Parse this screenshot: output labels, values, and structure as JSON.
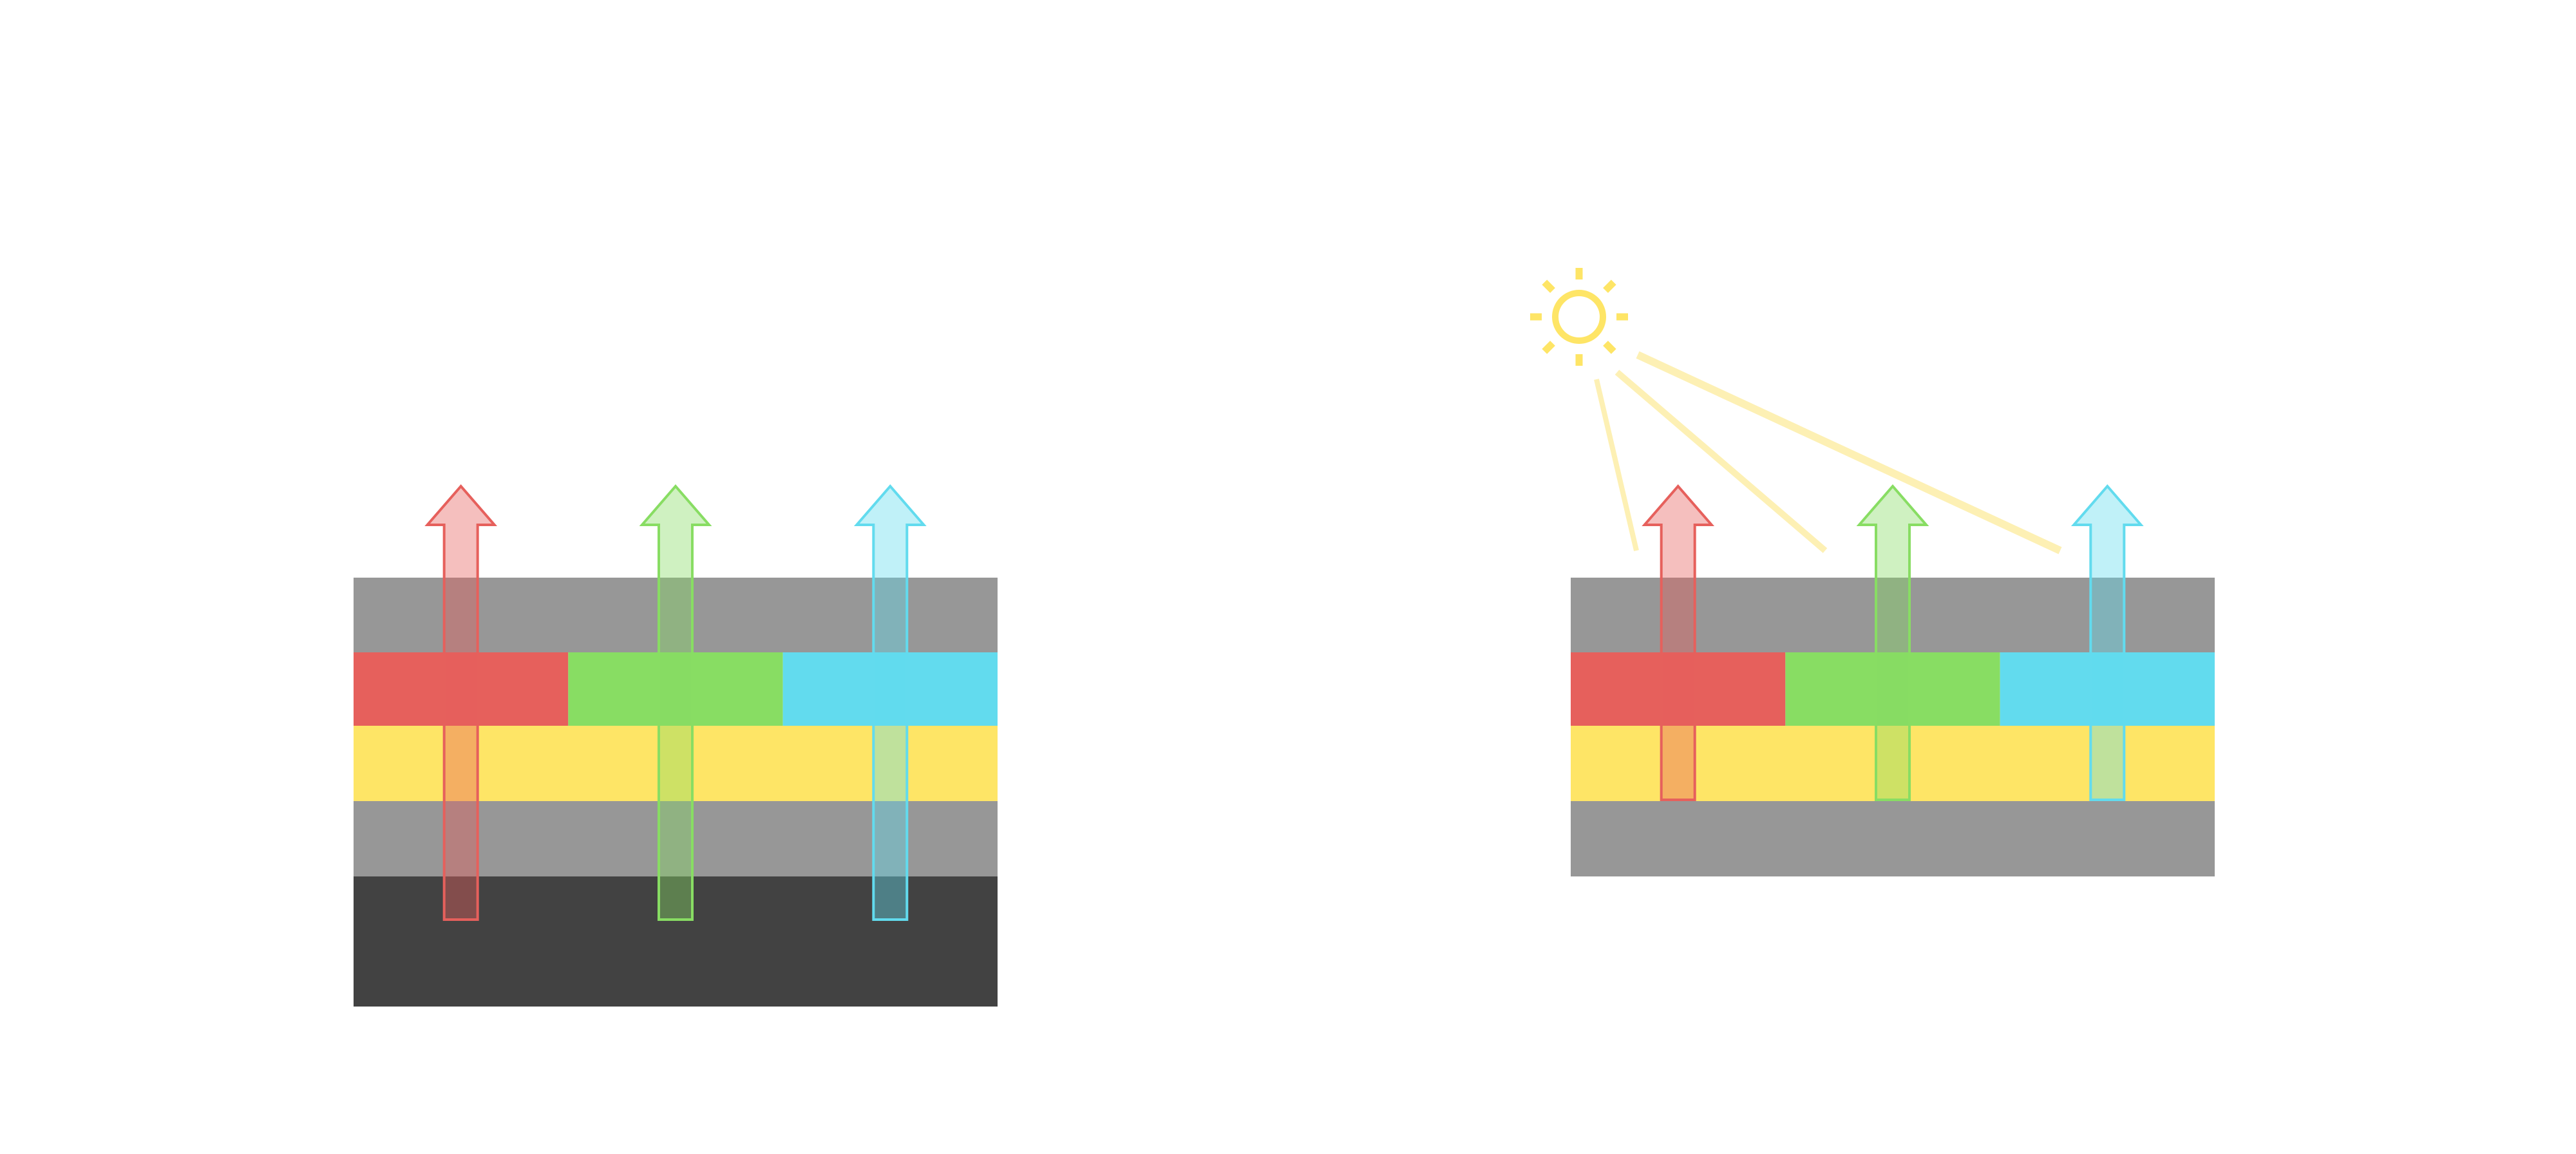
{
  "colors": {
    "background": "#ffffff",
    "gray_layer": "#979797",
    "dark_layer": "#424242",
    "yellow_layer": "#fee566",
    "red": "#e6605c",
    "green": "#88dd63",
    "cyan": "#62dbee",
    "red_arrow_fill": "rgba(230,96,92,0.4)",
    "green_arrow_fill": "rgba(136,221,99,0.4)",
    "cyan_arrow_fill": "rgba(98,219,238,0.4)",
    "sun": "#fee566",
    "light_ray": "#fdf0b4"
  },
  "diagrams": [
    {
      "name": "backlit-display",
      "layers": [
        "gray",
        "rgb-filter",
        "yellow",
        "gray",
        "dark-backlight"
      ],
      "arrows": [
        "red",
        "green",
        "cyan"
      ]
    },
    {
      "name": "reflective-display",
      "layers": [
        "gray",
        "rgb-filter",
        "yellow",
        "gray"
      ],
      "arrows": [
        "red",
        "green",
        "cyan"
      ],
      "light_source": "sun-icon"
    }
  ]
}
